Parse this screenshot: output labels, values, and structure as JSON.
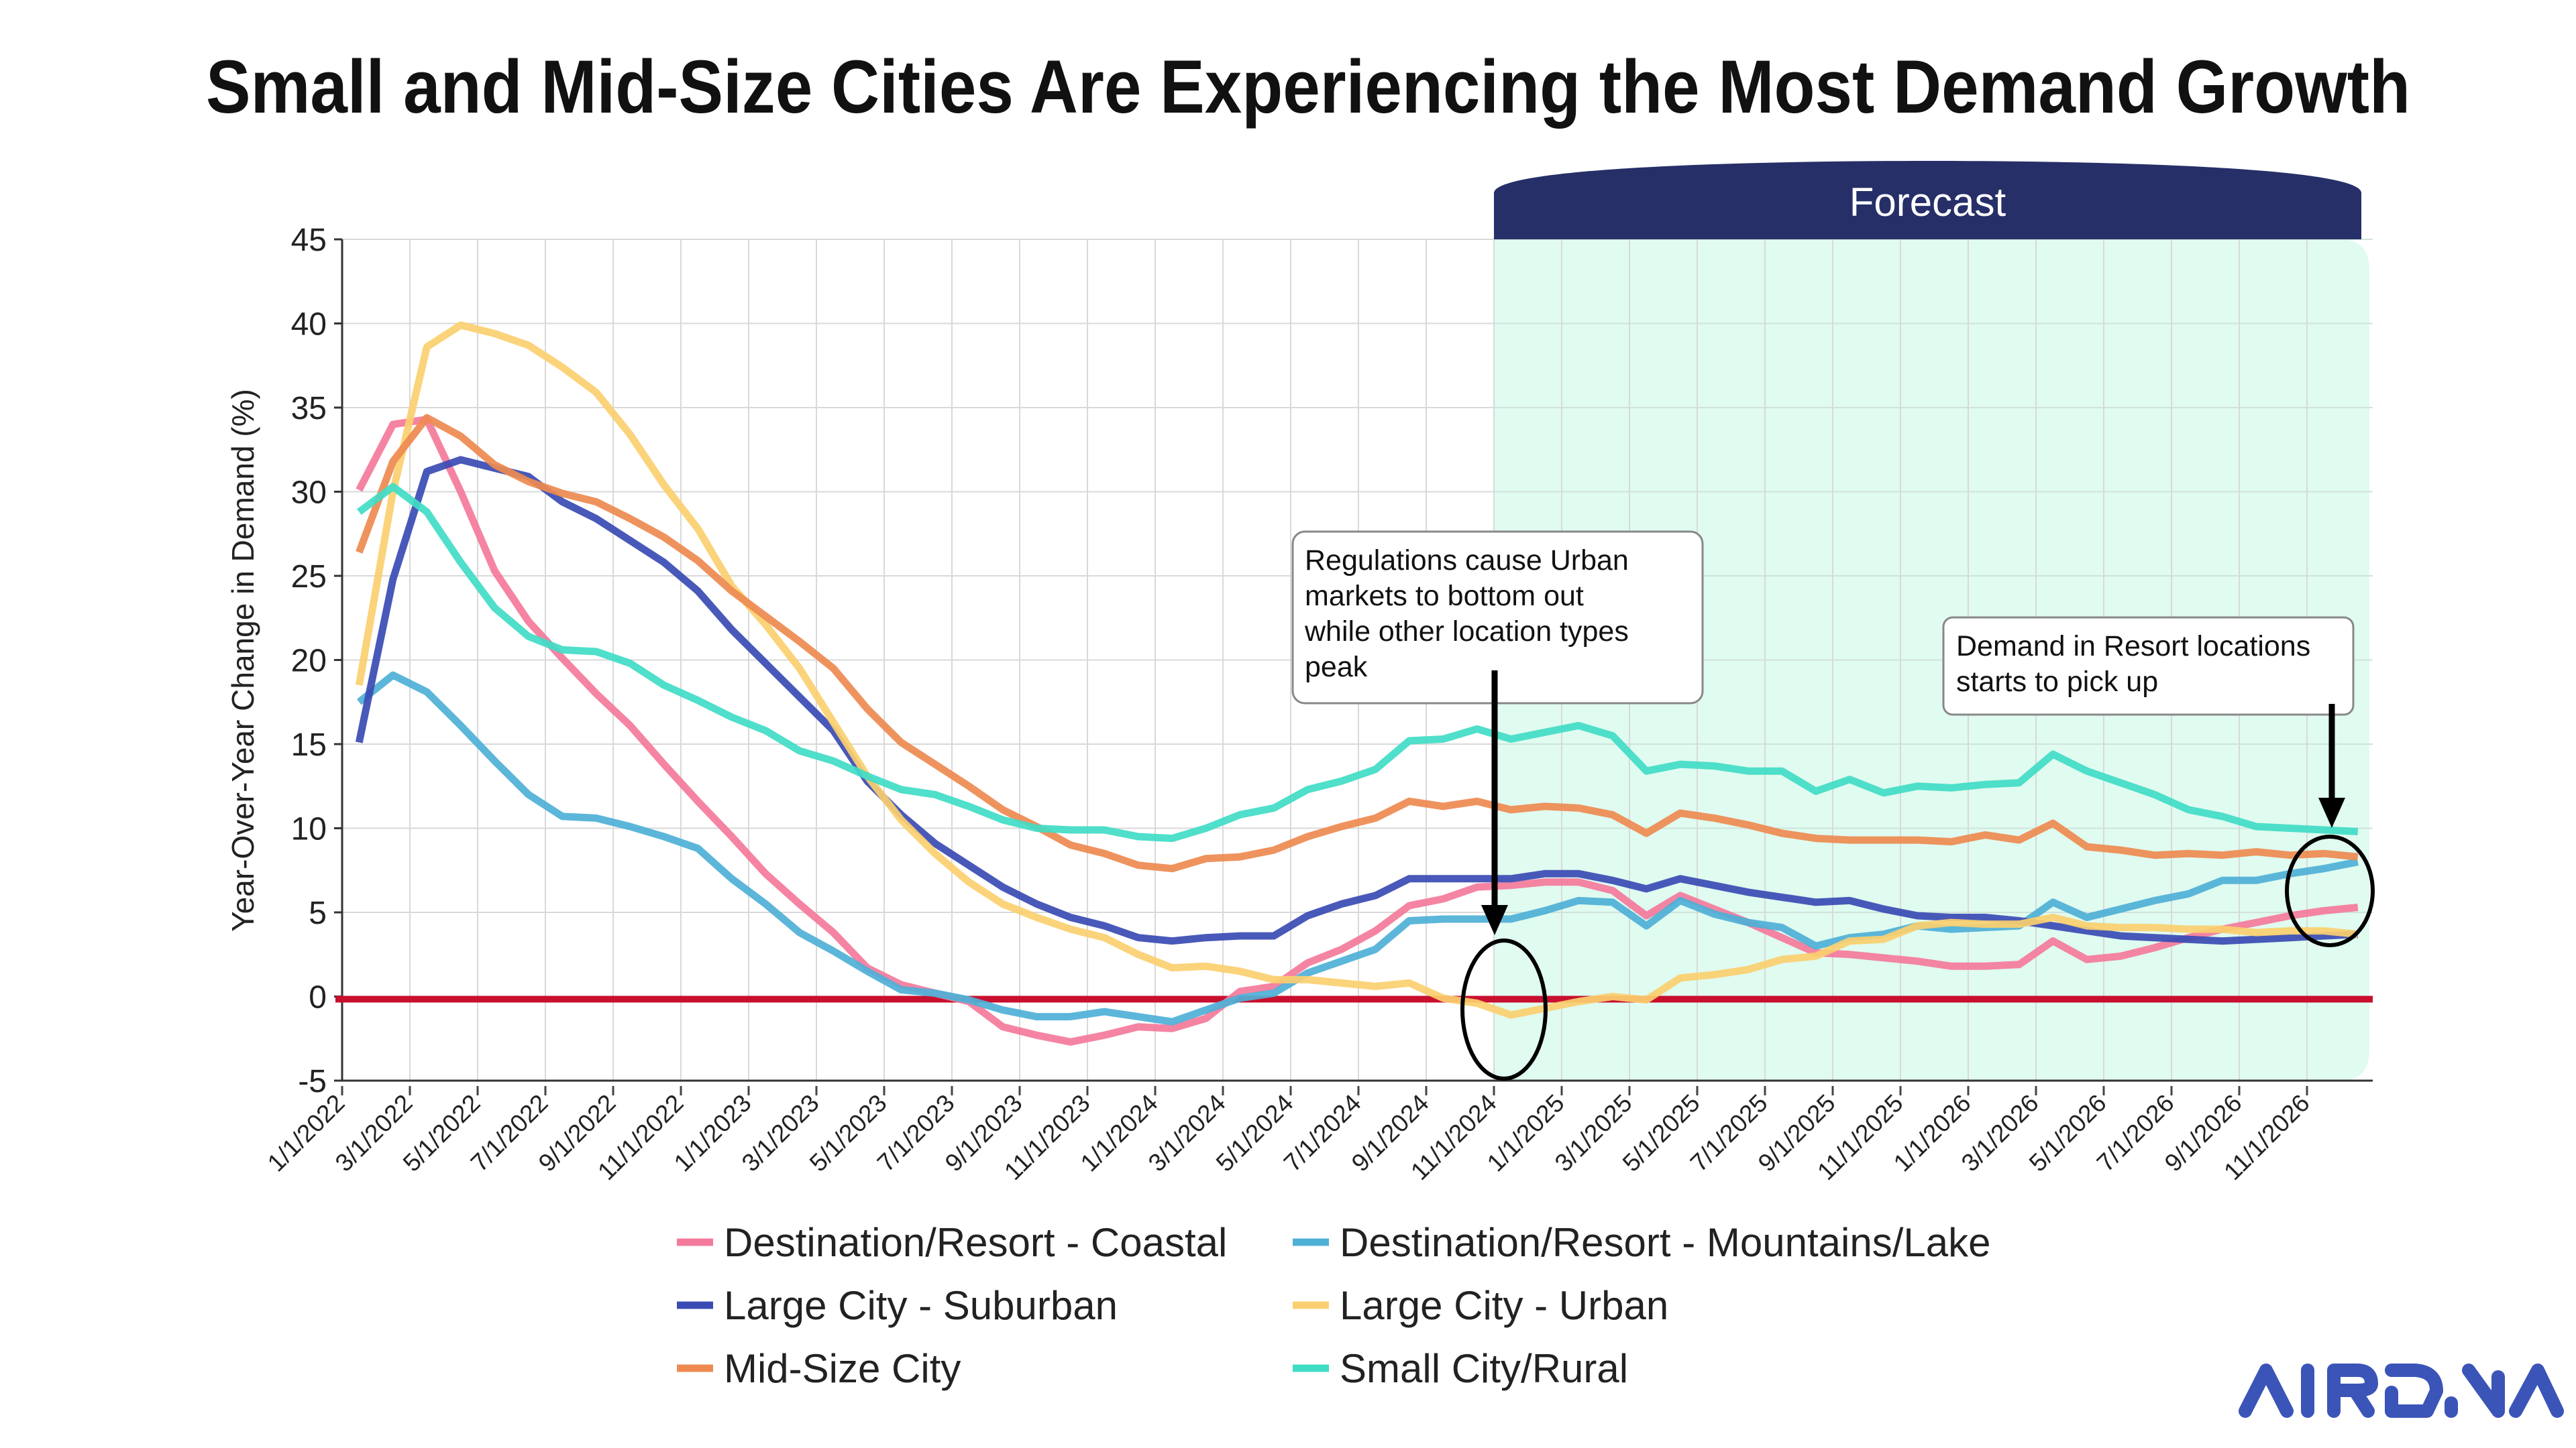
{
  "chart_data": {
    "type": "line",
    "title": "Small and Mid-Size Cities Are Experiencing the Most Demand Growth",
    "xlabel": "",
    "ylabel": "Year-Over-Year Change in Demand (%)",
    "ylim": [
      -5,
      45
    ],
    "yticks": [
      -5,
      0,
      5,
      10,
      15,
      20,
      25,
      30,
      35,
      40,
      45
    ],
    "grid": true,
    "legend_position": "bottom",
    "x_tick_labels": [
      "1/1/2022",
      "3/1/2022",
      "5/1/2022",
      "7/1/2022",
      "9/1/2022",
      "11/1/2022",
      "1/1/2023",
      "3/1/2023",
      "5/1/2023",
      "7/1/2023",
      "9/1/2023",
      "11/1/2023",
      "1/1/2024",
      "3/1/2024",
      "5/1/2024",
      "7/1/2024",
      "9/1/2024",
      "11/1/2024",
      "1/1/2025",
      "3/1/2025",
      "5/1/2025",
      "7/1/2025",
      "9/1/2025",
      "11/1/2025",
      "1/1/2026",
      "3/1/2026",
      "5/1/2026",
      "7/1/2026",
      "9/1/2026",
      "11/1/2026"
    ],
    "x": [
      "1/1/2022",
      "2/1/2022",
      "3/1/2022",
      "4/1/2022",
      "5/1/2022",
      "6/1/2022",
      "7/1/2022",
      "8/1/2022",
      "9/1/2022",
      "10/1/2022",
      "11/1/2022",
      "12/1/2022",
      "1/1/2023",
      "2/1/2023",
      "3/1/2023",
      "4/1/2023",
      "5/1/2023",
      "6/1/2023",
      "7/1/2023",
      "8/1/2023",
      "9/1/2023",
      "10/1/2023",
      "11/1/2023",
      "12/1/2023",
      "1/1/2024",
      "2/1/2024",
      "3/1/2024",
      "4/1/2024",
      "5/1/2024",
      "6/1/2024",
      "7/1/2024",
      "8/1/2024",
      "9/1/2024",
      "10/1/2024",
      "11/1/2024",
      "12/1/2024",
      "1/1/2025",
      "2/1/2025",
      "3/1/2025",
      "4/1/2025",
      "5/1/2025",
      "6/1/2025",
      "7/1/2025",
      "8/1/2025",
      "9/1/2025",
      "10/1/2025",
      "11/1/2025",
      "12/1/2025",
      "1/1/2026",
      "2/1/2026",
      "3/1/2026",
      "4/1/2026",
      "5/1/2026",
      "6/1/2026",
      "7/1/2026",
      "8/1/2026",
      "9/1/2026",
      "10/1/2026",
      "11/1/2026",
      "12/1/2026"
    ],
    "reference_line": {
      "y": 0,
      "color": "#c8102e"
    },
    "forecast": {
      "label": "Forecast",
      "start": "11/1/2024",
      "end": "12/1/2026",
      "shade_color": "#e0fbf0",
      "banner_color": "#262f68"
    },
    "series": [
      {
        "name": "Destination/Resort - Coastal",
        "color": "#f47a9b",
        "values": [
          30.1,
          34.0,
          34.3,
          30.0,
          25.3,
          22.3,
          20.1,
          18.0,
          16.1,
          13.8,
          11.6,
          9.5,
          7.3,
          5.5,
          3.8,
          1.7,
          0.7,
          0.2,
          -0.3,
          -1.8,
          -2.3,
          -2.7,
          -2.3,
          -1.8,
          -1.9,
          -1.3,
          0.3,
          0.6,
          2.0,
          2.8,
          3.9,
          5.4,
          5.8,
          6.5,
          6.6,
          6.8,
          6.8,
          6.3,
          4.8,
          6.0,
          5.2,
          4.4,
          3.5,
          2.6,
          2.5,
          2.3,
          2.1,
          1.8,
          1.8,
          1.9,
          3.3,
          2.2,
          2.4,
          2.9,
          3.5,
          4.0,
          4.4,
          4.8,
          5.1,
          5.3
        ]
      },
      {
        "name": "Destination/Resort - Mountains/Lake",
        "color": "#4eb0d7",
        "values": [
          17.5,
          19.1,
          18.1,
          16.1,
          14.0,
          12.0,
          10.7,
          10.6,
          10.1,
          9.5,
          8.8,
          7.0,
          5.5,
          3.8,
          2.7,
          1.5,
          0.4,
          0.2,
          -0.2,
          -0.8,
          -1.2,
          -1.2,
          -0.9,
          -1.2,
          -1.5,
          -0.8,
          -0.1,
          0.2,
          1.4,
          2.1,
          2.8,
          4.5,
          4.6,
          4.6,
          4.6,
          5.1,
          5.7,
          5.6,
          4.2,
          5.7,
          4.9,
          4.4,
          4.1,
          3.0,
          3.5,
          3.7,
          4.2,
          4.0,
          4.1,
          4.2,
          5.6,
          4.7,
          5.2,
          5.7,
          6.1,
          6.9,
          6.9,
          7.3,
          7.6,
          8.0
        ]
      },
      {
        "name": "Large City - Suburban",
        "color": "#3a4bb3",
        "values": [
          15.1,
          24.8,
          31.2,
          31.9,
          31.4,
          30.9,
          29.4,
          28.4,
          27.1,
          25.8,
          24.1,
          21.8,
          19.8,
          17.8,
          15.8,
          12.8,
          10.8,
          9.1,
          7.8,
          6.5,
          5.5,
          4.7,
          4.2,
          3.5,
          3.3,
          3.5,
          3.6,
          3.6,
          4.8,
          5.5,
          6.0,
          7.0,
          7.0,
          7.0,
          7.0,
          7.3,
          7.3,
          6.9,
          6.4,
          7.0,
          6.6,
          6.2,
          5.9,
          5.6,
          5.7,
          5.2,
          4.8,
          4.7,
          4.7,
          4.5,
          4.2,
          3.9,
          3.6,
          3.5,
          3.4,
          3.3,
          3.4,
          3.5,
          3.6,
          3.7
        ]
      },
      {
        "name": "Large City - Urban",
        "color": "#fbcf6f",
        "values": [
          18.5,
          30.0,
          38.6,
          39.9,
          39.4,
          38.7,
          37.4,
          35.9,
          33.4,
          30.4,
          27.8,
          24.4,
          22.1,
          19.5,
          16.3,
          13.1,
          10.5,
          8.5,
          6.8,
          5.5,
          4.7,
          4.0,
          3.5,
          2.5,
          1.7,
          1.8,
          1.5,
          1.0,
          1.0,
          0.8,
          0.6,
          0.8,
          -0.1,
          -0.4,
          -1.1,
          -0.7,
          -0.3,
          0.0,
          -0.2,
          1.1,
          1.3,
          1.6,
          2.2,
          2.4,
          3.3,
          3.4,
          4.2,
          4.4,
          4.3,
          4.3,
          4.7,
          4.2,
          4.1,
          4.1,
          4.0,
          4.0,
          3.8,
          3.9,
          3.9,
          3.7
        ]
      },
      {
        "name": "Mid-Size City",
        "color": "#ee8a50",
        "values": [
          26.4,
          31.8,
          34.4,
          33.3,
          31.6,
          30.6,
          29.9,
          29.4,
          28.4,
          27.3,
          25.9,
          24.1,
          22.6,
          21.1,
          19.5,
          17.1,
          15.1,
          13.8,
          12.5,
          11.1,
          10.1,
          9.0,
          8.5,
          7.8,
          7.6,
          8.2,
          8.3,
          8.7,
          9.5,
          10.1,
          10.6,
          11.6,
          11.3,
          11.6,
          11.1,
          11.3,
          11.2,
          10.8,
          9.7,
          10.9,
          10.6,
          10.2,
          9.7,
          9.4,
          9.3,
          9.3,
          9.3,
          9.2,
          9.6,
          9.3,
          10.3,
          8.9,
          8.7,
          8.4,
          8.5,
          8.4,
          8.6,
          8.4,
          8.5,
          8.3
        ]
      },
      {
        "name": "Small City/Rural",
        "color": "#40dcc5",
        "values": [
          28.8,
          30.3,
          28.8,
          25.8,
          23.1,
          21.4,
          20.6,
          20.5,
          19.8,
          18.5,
          17.6,
          16.6,
          15.8,
          14.6,
          14.0,
          13.1,
          12.3,
          12.0,
          11.3,
          10.5,
          10.0,
          9.9,
          9.9,
          9.5,
          9.4,
          10.0,
          10.8,
          11.2,
          12.3,
          12.8,
          13.5,
          15.2,
          15.3,
          15.9,
          15.3,
          15.7,
          16.1,
          15.5,
          13.4,
          13.8,
          13.7,
          13.4,
          13.4,
          12.2,
          12.9,
          12.1,
          12.5,
          12.4,
          12.6,
          12.7,
          14.4,
          13.4,
          12.7,
          12.0,
          11.1,
          10.7,
          10.1,
          10.0,
          9.9,
          9.8
        ]
      }
    ],
    "annotations": [
      {
        "lines": [
          "Regulations cause Urban",
          "markets to bottom out",
          "while other location types",
          "peak"
        ],
        "target_date": "11/1/2024"
      },
      {
        "lines": [
          "Demand in Resort locations",
          "starts to pick up"
        ],
        "target_date": "12/1/2026"
      }
    ]
  },
  "legend": {
    "items": [
      {
        "label": "Destination/Resort - Coastal"
      },
      {
        "label": "Destination/Resort - Mountains/Lake"
      },
      {
        "label": "Large City - Suburban"
      },
      {
        "label": "Large City - Urban"
      },
      {
        "label": "Mid-Size City"
      },
      {
        "label": "Small City/Rural"
      }
    ]
  },
  "logo": {
    "text": "AIRDNA",
    "color": "#3b54b8"
  }
}
